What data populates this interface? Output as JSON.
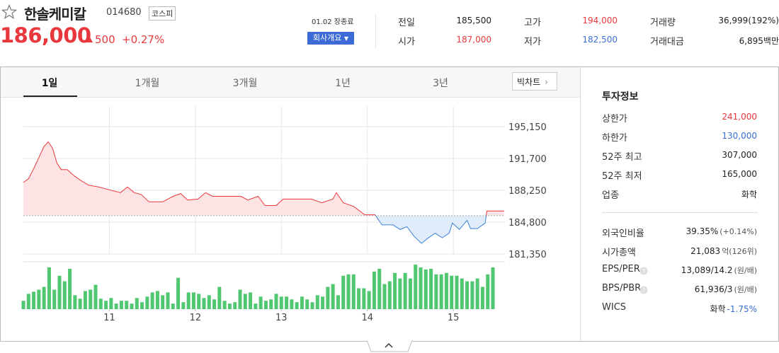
{
  "header": {
    "name": "한솔케미칼",
    "code": "014680",
    "market": "코스피",
    "price": "186,000",
    "change": "500",
    "change_rate": "+0.27%",
    "status": "01.02 장종료",
    "company_button": "회사개요"
  },
  "quote": {
    "rows": [
      [
        {
          "label": "전일",
          "value": "185,500"
        },
        {
          "label": "고가",
          "value": "194,000",
          "color": "#e8383d"
        },
        {
          "label": "거래량",
          "value": "36,999(192%)"
        }
      ],
      [
        {
          "label": "시가",
          "value": "187,000",
          "color": "#e8383d"
        },
        {
          "label": "저가",
          "value": "182,500",
          "color": "#3b6fd4"
        },
        {
          "label": "거래대금",
          "value": "6,895백만"
        }
      ]
    ]
  },
  "tabs": [
    "1일",
    "1개월",
    "3개월",
    "1년",
    "3년"
  ],
  "big_chart": "빅차트",
  "chart_data": [
    {
      "type": "line",
      "color_up": "#e8383d",
      "color_down": "#3b82d6",
      "fill_up": "#fde3e3",
      "fill_down": "#e0ecfa",
      "baseline": 185500,
      "x": [
        10.0,
        10.06,
        10.12,
        10.18,
        10.24,
        10.29,
        10.34,
        10.39,
        10.44,
        10.51,
        10.58,
        10.67,
        10.76,
        10.88,
        11.0,
        11.13,
        11.21,
        11.29,
        11.37,
        11.46,
        11.62,
        11.74,
        11.83,
        11.91,
        12.03,
        12.12,
        12.2,
        12.36,
        12.53,
        12.61,
        12.73,
        12.81,
        12.94,
        13.02,
        13.19,
        13.35,
        13.47,
        13.6,
        13.64,
        13.72,
        13.84,
        13.97,
        14.09,
        14.17,
        14.3,
        14.38,
        14.46,
        14.54,
        14.63,
        14.71,
        14.79,
        14.87,
        14.95,
        14.99,
        15.07,
        15.16,
        15.2,
        15.28,
        15.37,
        15.39,
        15.59
      ],
      "values": [
        189100,
        189500,
        190600,
        191800,
        193000,
        193500,
        192800,
        191200,
        190500,
        190500,
        189900,
        189300,
        188800,
        188600,
        188300,
        188000,
        188600,
        188000,
        187800,
        187000,
        187000,
        187600,
        187900,
        187200,
        187300,
        188000,
        187600,
        187600,
        187600,
        187200,
        187600,
        186600,
        186600,
        187300,
        187300,
        187300,
        186900,
        187300,
        188000,
        186900,
        186500,
        185600,
        185600,
        184500,
        184500,
        184000,
        184300,
        183300,
        182500,
        183100,
        183600,
        183100,
        183600,
        184700,
        184000,
        185000,
        184100,
        184100,
        184700,
        186000,
        186000
      ],
      "xlim": [
        10,
        15.6
      ],
      "xticks": [
        11,
        12,
        13,
        14,
        15
      ],
      "ylim": [
        181350,
        195150
      ],
      "yticks": [
        {
          "value": 195150,
          "label": "195,150"
        },
        {
          "value": 191700,
          "label": "191,700"
        },
        {
          "value": 188250,
          "label": "188,250"
        },
        {
          "value": 184800,
          "label": "184,800"
        },
        {
          "value": 181350,
          "label": "181,350"
        }
      ],
      "grid": true
    },
    {
      "type": "bar",
      "color": "#52c771",
      "x": [
        10,
        10.06,
        10.12,
        10.18,
        10.24,
        10.3,
        10.36,
        10.42,
        10.48,
        10.54,
        10.6,
        10.66,
        10.72,
        10.78,
        10.84,
        10.9,
        10.96,
        11.02,
        11.08,
        11.14,
        11.2,
        11.26,
        11.32,
        11.38,
        11.44,
        11.5,
        11.56,
        11.62,
        11.68,
        11.74,
        11.8,
        11.86,
        11.92,
        11.98,
        12.04,
        12.1,
        12.16,
        12.22,
        12.28,
        12.34,
        12.4,
        12.46,
        12.52,
        12.58,
        12.64,
        12.7,
        12.76,
        12.82,
        12.88,
        12.94,
        13,
        13.06,
        13.12,
        13.18,
        13.24,
        13.3,
        13.36,
        13.42,
        13.48,
        13.54,
        13.6,
        13.66,
        13.72,
        13.78,
        13.84,
        13.9,
        13.96,
        14.02,
        14.08,
        14.14,
        14.2,
        14.26,
        14.32,
        14.38,
        14.44,
        14.5,
        14.56,
        14.62,
        14.68,
        14.74,
        14.8,
        14.86,
        14.92,
        14.98,
        15.04,
        15.1,
        15.16,
        15.22,
        15.28,
        15.34,
        15.4,
        15.46
      ],
      "values": [
        12,
        22,
        25,
        28,
        32,
        60,
        28,
        48,
        40,
        58,
        20,
        15,
        26,
        28,
        35,
        15,
        12,
        16,
        8,
        12,
        12,
        8,
        16,
        10,
        18,
        24,
        26,
        20,
        24,
        8,
        45,
        10,
        24,
        24,
        22,
        16,
        20,
        14,
        32,
        12,
        8,
        10,
        28,
        22,
        24,
        8,
        18,
        12,
        14,
        22,
        18,
        18,
        14,
        10,
        18,
        14,
        10,
        20,
        18,
        32,
        36,
        20,
        48,
        50,
        50,
        30,
        30,
        26,
        54,
        58,
        36,
        40,
        52,
        44,
        52,
        44,
        64,
        60,
        57,
        58,
        50,
        50,
        52,
        48,
        48,
        44,
        40,
        40,
        44,
        32,
        50,
        60
      ],
      "xlim": [
        10,
        15.6
      ],
      "xticks": [
        11,
        12,
        13,
        14,
        15
      ],
      "ylim": [
        0,
        64
      ]
    }
  ],
  "invest_info": {
    "title": "투자정보",
    "rows": [
      {
        "label": "상한가",
        "value": "241,000",
        "color": "#e8383d"
      },
      {
        "label": "하한가",
        "value": "130,000",
        "color": "#3b6fd4"
      },
      {
        "label": "52주 최고",
        "value": "307,000"
      },
      {
        "label": "52주 최저",
        "value": "165,000"
      },
      {
        "label": "업종",
        "value": "화학"
      }
    ],
    "rows2": [
      {
        "label": "외국인비율",
        "value": "39.35%",
        "sub": "(+0.14%)"
      },
      {
        "label": "시가총액",
        "value": "21,083",
        "sub": "억(126위)"
      },
      {
        "label": "EPS/PER",
        "value": "13,089/14.2",
        "sub": "(원/배)"
      },
      {
        "label": "BPS/PBR",
        "value": "61,936/3",
        "sub": "(원/배)"
      },
      {
        "label": "WICS",
        "value": "화학",
        "sub": "-1.75%",
        "sub_color": "#3b6fd4"
      }
    ]
  }
}
